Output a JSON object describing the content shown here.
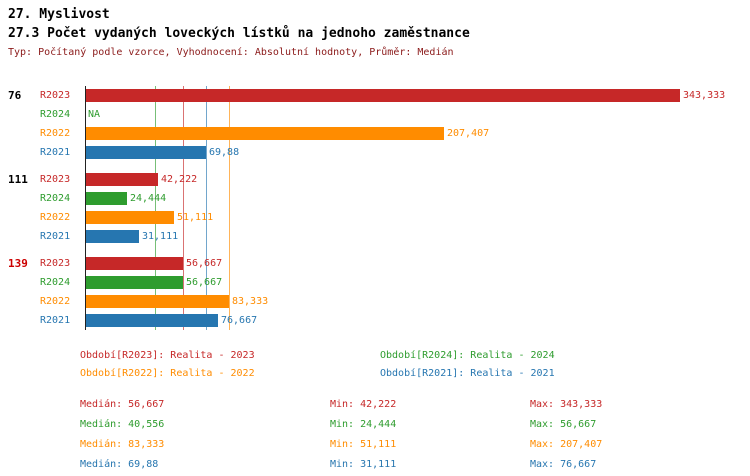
{
  "colors": {
    "r2023": "#c62828",
    "r2024": "#2e9c2e",
    "r2022": "#ff8c00",
    "r2021": "#2676b0",
    "meta_text": "#8b1a1a",
    "axis": "#222222",
    "group1_label": "#000000",
    "group2_label": "#000000",
    "group3_label": "#cc0000"
  },
  "chart_data": {
    "type": "bar",
    "orientation": "horizontal",
    "title": "27. Myslivost",
    "subtitle": "27.3 Počet vydaných loveckých lístků na jednoho zaměstnance",
    "meta": "Typ: Počítaný podle vzorce, Vyhodnocení: Absolutní hodnoty, Průměr: Medián",
    "xlim": [
      0,
      360
    ],
    "series_names": [
      "R2023",
      "R2024",
      "R2022",
      "R2021"
    ],
    "groups": [
      {
        "label": "76",
        "bars": [
          {
            "series": "R2023",
            "value": 343.333,
            "display": "343,333"
          },
          {
            "series": "R2024",
            "value": null,
            "display": "NA"
          },
          {
            "series": "R2022",
            "value": 207.407,
            "display": "207,407"
          },
          {
            "series": "R2021",
            "value": 69.88,
            "display": "69,88"
          }
        ]
      },
      {
        "label": "111",
        "bars": [
          {
            "series": "R2023",
            "value": 42.222,
            "display": "42,222"
          },
          {
            "series": "R2024",
            "value": 24.444,
            "display": "24,444"
          },
          {
            "series": "R2022",
            "value": 51.111,
            "display": "51,111"
          },
          {
            "series": "R2021",
            "value": 31.111,
            "display": "31,111"
          }
        ]
      },
      {
        "label": "139",
        "bars": [
          {
            "series": "R2023",
            "value": 56.667,
            "display": "56,667"
          },
          {
            "series": "R2024",
            "value": 56.667,
            "display": "56,667"
          },
          {
            "series": "R2022",
            "value": 83.333,
            "display": "83,333"
          },
          {
            "series": "R2021",
            "value": 76.667,
            "display": "76,667"
          }
        ]
      }
    ],
    "medians": {
      "r2023": 56.667,
      "r2024": 40.556,
      "r2022": 83.333,
      "r2021": 69.88
    }
  },
  "legend": {
    "items": [
      {
        "text": "Období[R2023]: Realita - 2023"
      },
      {
        "text": "Období[R2024]: Realita - 2024"
      },
      {
        "text": "Období[R2022]: Realita - 2022"
      },
      {
        "text": "Období[R2021]: Realita - 2021"
      }
    ]
  },
  "stats": {
    "rows": [
      {
        "median": "Medián: 56,667",
        "min": "Min: 42,222",
        "max": "Max: 343,333"
      },
      {
        "median": "Medián: 40,556",
        "min": "Min: 24,444",
        "max": "Max: 56,667"
      },
      {
        "median": "Medián: 83,333",
        "min": "Min: 51,111",
        "max": "Max: 207,407"
      },
      {
        "median": "Medián: 69,88",
        "min": "Min: 31,111",
        "max": "Max: 76,667"
      }
    ]
  }
}
